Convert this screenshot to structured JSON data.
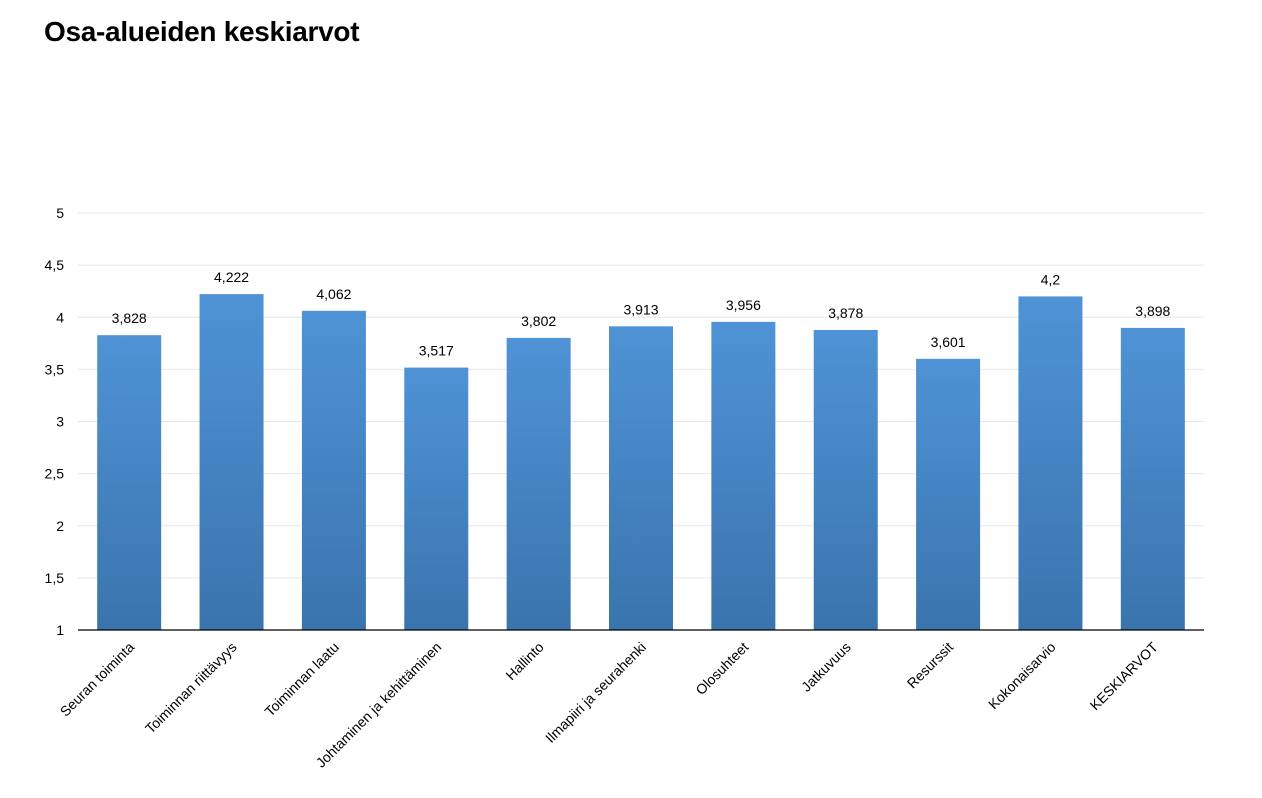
{
  "chart_data": {
    "type": "bar",
    "title": "Osa-alueiden keskiarvot",
    "categories": [
      "Seuran toiminta",
      "Toiminnan riittävyys",
      "Toiminnan laatu",
      "Johtaminen ja kehittäminen",
      "Hallinto",
      "Ilmapiiri ja seurahenki",
      "Olosuhteet",
      "Jatkuvuus",
      "Resurssit",
      "Kokonaisarvio",
      "KESKIARVOT"
    ],
    "values": [
      3.828,
      4.222,
      4.062,
      3.517,
      3.802,
      3.913,
      3.956,
      3.878,
      3.601,
      4.2,
      3.898
    ],
    "value_labels": [
      "3,828",
      "4,222",
      "4,062",
      "3,517",
      "3,802",
      "3,913",
      "3,956",
      "3,878",
      "3,601",
      "4,2",
      "3,898"
    ],
    "yticks": [
      1,
      1.5,
      2,
      2.5,
      3,
      3.5,
      4,
      4.5,
      5
    ],
    "ytick_labels": [
      "1",
      "1,5",
      "2",
      "2,5",
      "3",
      "3,5",
      "4",
      "4,5",
      "5"
    ],
    "ylim": [
      1,
      5
    ],
    "xlabel": "",
    "ylabel": "",
    "grid": true,
    "legend": "none",
    "bar_color_top": "#4f93d6",
    "bar_color_bottom": "#3a74ad"
  }
}
